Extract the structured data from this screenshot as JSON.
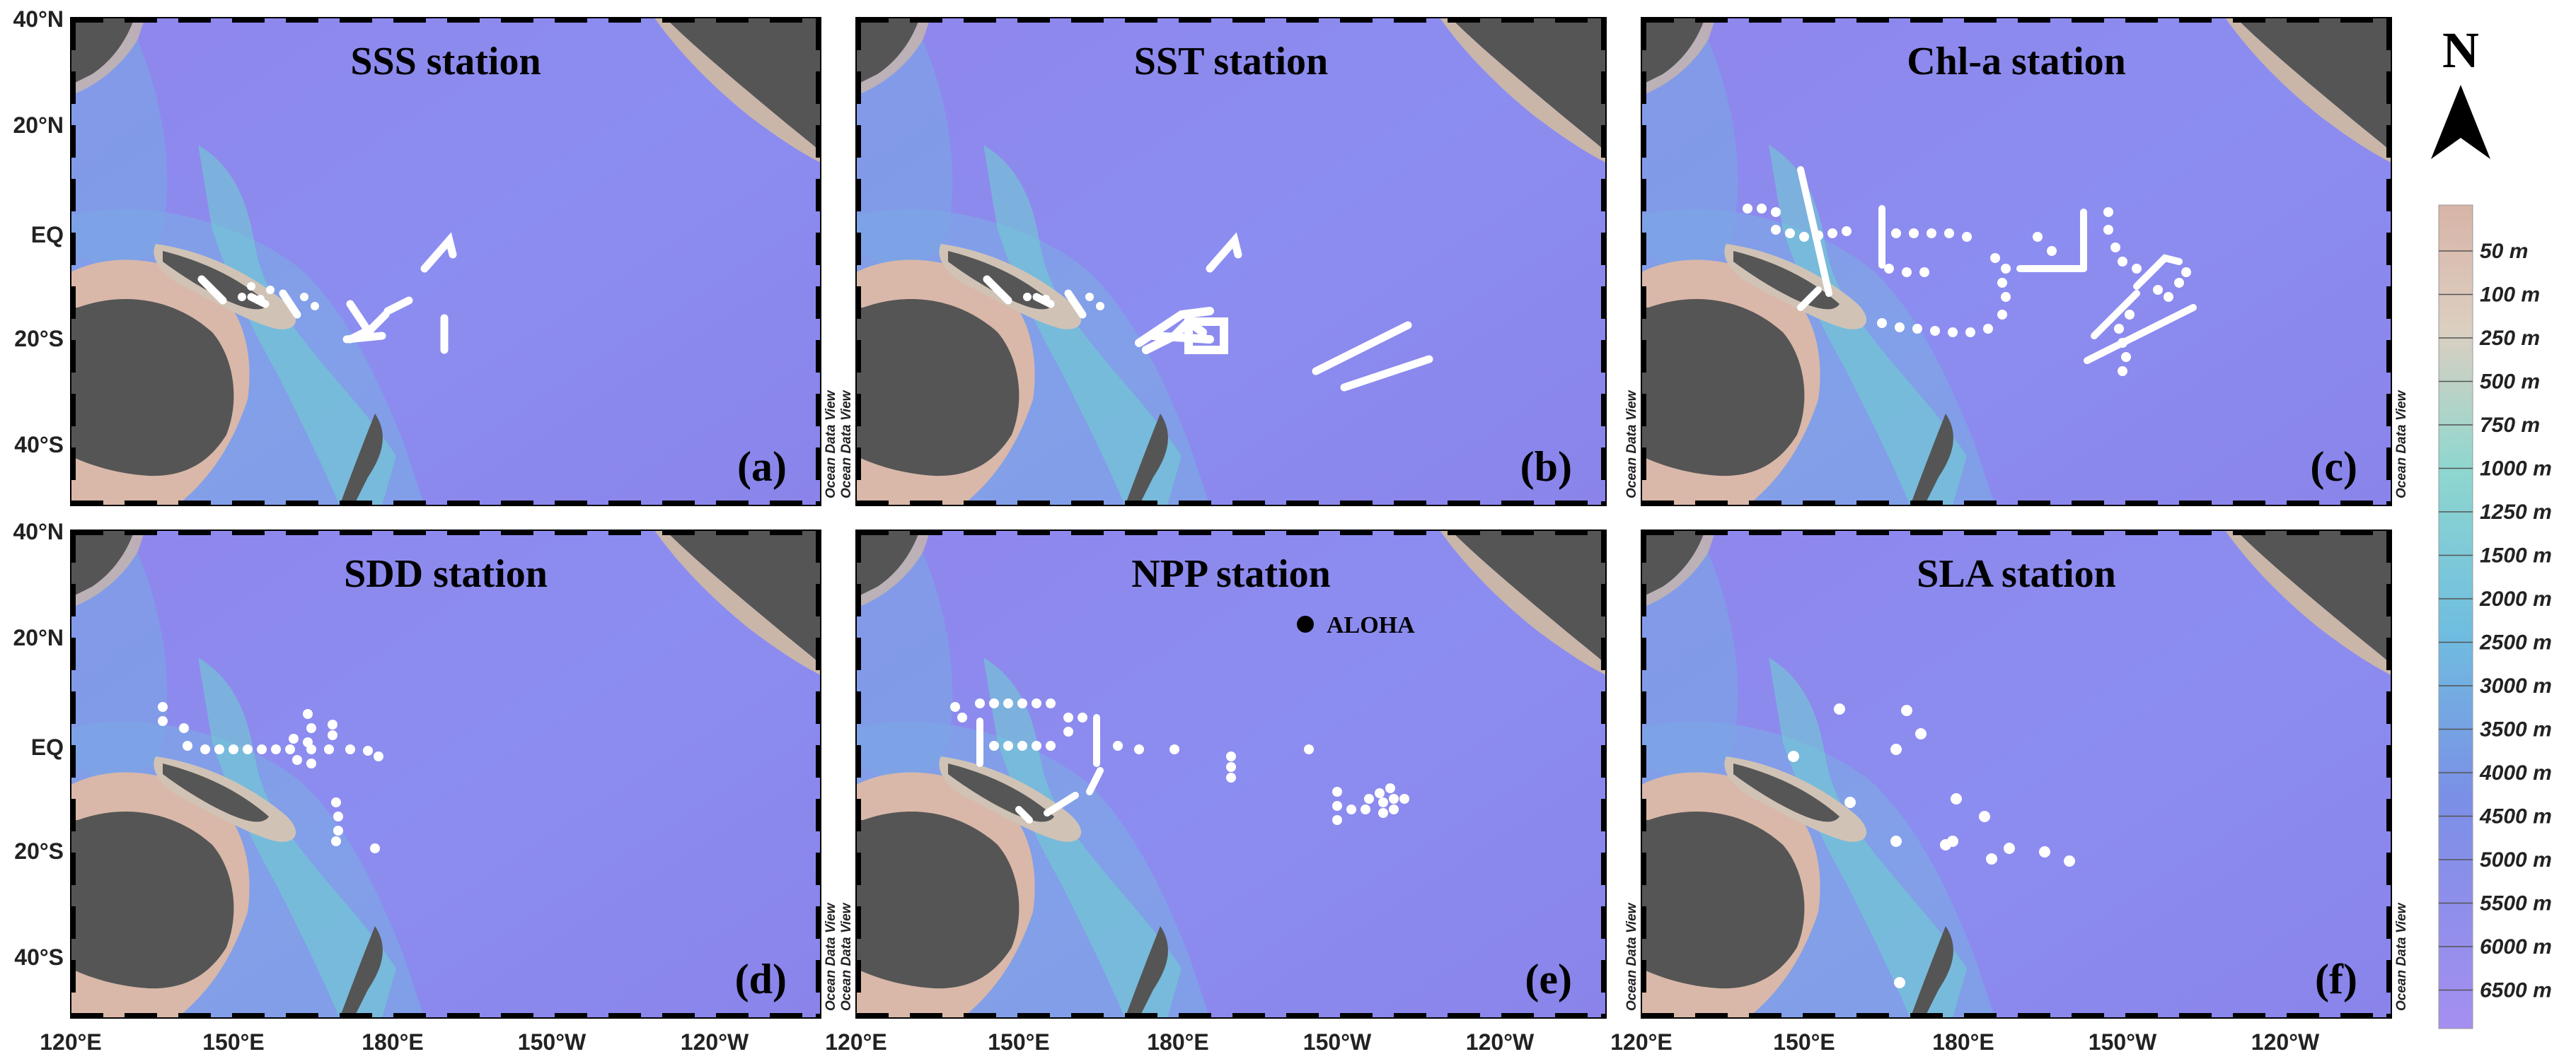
{
  "figure": {
    "panels": [
      {
        "id": "a",
        "title": "SSS station",
        "letter": "(a)"
      },
      {
        "id": "b",
        "title": "SST station",
        "letter": "(b)"
      },
      {
        "id": "c",
        "title": "Chl-a station",
        "letter": "(c)"
      },
      {
        "id": "d",
        "title": "SDD station",
        "letter": "(d)"
      },
      {
        "id": "e",
        "title": "NPP station",
        "letter": "(e)"
      },
      {
        "id": "f",
        "title": "SLA station",
        "letter": "(f)"
      }
    ],
    "lat_ticks": [
      "40°N",
      "20°N",
      "EQ",
      "20°S",
      "40°S"
    ],
    "lon_ticks": [
      "120°E",
      "150°E",
      "180°E",
      "150°W",
      "120°W"
    ],
    "watermark": "Ocean Data View",
    "marker_label": "ALOHA",
    "north_arrow": "N",
    "depth_legend": [
      "50 m",
      "100 m",
      "250 m",
      "500 m",
      "750 m",
      "1000 m",
      "1250 m",
      "1500 m",
      "2000 m",
      "2500 m",
      "3000 m",
      "3500 m",
      "4000 m",
      "4500 m",
      "5000 m",
      "5500 m",
      "6000 m",
      "6500 m"
    ],
    "colors": {
      "ocean_deep": "#8a86ee",
      "ocean_mid": "#7fa0e8",
      "shelf": "#6fd2cf",
      "coast": "#d9b8a9",
      "land": "#555555",
      "station": "#ffffff"
    }
  }
}
